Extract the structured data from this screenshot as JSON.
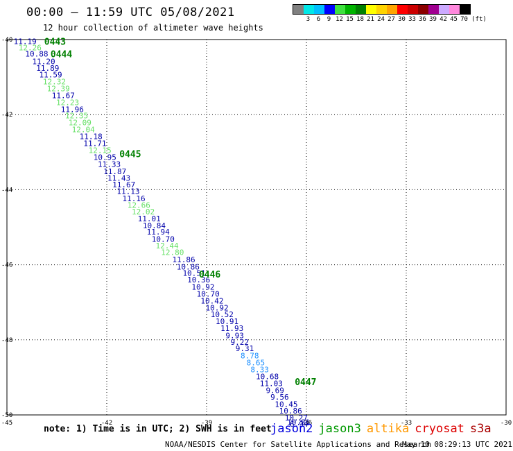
{
  "title": "00:00 – 11:59 UTC 05/08/2021",
  "subtitle": "12 hour collection of altimeter wave heights",
  "color_scale": {
    "unit": "(ft)",
    "bins": [
      {
        "label": "",
        "color": "#808080"
      },
      {
        "label": "3",
        "color": "#00e8e8"
      },
      {
        "label": "6",
        "color": "#00bfff"
      },
      {
        "label": "9",
        "color": "#0000ff"
      },
      {
        "label": "12",
        "color": "#3fe23f"
      },
      {
        "label": "15",
        "color": "#00b400"
      },
      {
        "label": "18",
        "color": "#008000"
      },
      {
        "label": "21",
        "color": "#ffff00"
      },
      {
        "label": "24",
        "color": "#ffd400"
      },
      {
        "label": "27",
        "color": "#ffa500"
      },
      {
        "label": "30",
        "color": "#ff0000"
      },
      {
        "label": "33",
        "color": "#cc0000"
      },
      {
        "label": "36",
        "color": "#8b0000"
      },
      {
        "label": "39",
        "color": "#a00090"
      },
      {
        "label": "42",
        "color": "#ccaaff"
      },
      {
        "label": "45",
        "color": "#ff88dd"
      },
      {
        "label": "70",
        "color": "#000000"
      }
    ]
  },
  "map": {
    "lon_range": [
      -45,
      -30
    ],
    "lat_range": [
      -50,
      -40
    ],
    "lon_ticks": [
      {
        "value": -45,
        "label": "-45"
      },
      {
        "value": -42,
        "label": "-42"
      },
      {
        "value": -39,
        "label": "-39"
      },
      {
        "value": -36,
        "label": "-36"
      },
      {
        "value": -33,
        "label": "-33"
      },
      {
        "value": -30,
        "label": "-30"
      }
    ],
    "lat_ticks": [
      {
        "value": -40,
        "label": "-40"
      },
      {
        "value": -42,
        "label": "-42"
      },
      {
        "value": -44,
        "label": "-44"
      },
      {
        "value": -46,
        "label": "-46"
      },
      {
        "value": -48,
        "label": "-48"
      },
      {
        "value": -50,
        "label": "-50"
      }
    ],
    "time_labels": [
      {
        "text": "0443",
        "lon": -43.88,
        "lat": -40.05
      },
      {
        "text": "0444",
        "lon": -43.69,
        "lat": -40.38
      },
      {
        "text": "0445",
        "lon": -41.62,
        "lat": -43.04
      },
      {
        "text": "0446",
        "lon": -39.23,
        "lat": -46.25
      },
      {
        "text": "0447",
        "lon": -36.35,
        "lat": -49.11
      }
    ],
    "points": [
      {
        "lon": -44.8,
        "lat": -40.05,
        "value": "11.19",
        "color": "#0000aa"
      },
      {
        "lon": -44.65,
        "lat": -40.21,
        "value": "12.26",
        "color": "#66e066"
      },
      {
        "lon": -44.45,
        "lat": -40.38,
        "value": "10.88",
        "color": "#0000aa"
      },
      {
        "lon": -44.24,
        "lat": -40.58,
        "value": "11.20",
        "color": "#0000aa"
      },
      {
        "lon": -44.12,
        "lat": -40.76,
        "value": "11.89",
        "color": "#0000aa"
      },
      {
        "lon": -44.03,
        "lat": -40.93,
        "value": "11.59",
        "color": "#0000aa"
      },
      {
        "lon": -43.92,
        "lat": -41.12,
        "value": "12.32",
        "color": "#66e066"
      },
      {
        "lon": -43.8,
        "lat": -41.3,
        "value": "12.39",
        "color": "#66e066"
      },
      {
        "lon": -43.65,
        "lat": -41.49,
        "value": "11.67",
        "color": "#0000aa"
      },
      {
        "lon": -43.52,
        "lat": -41.67,
        "value": "12.23",
        "color": "#66e066"
      },
      {
        "lon": -43.38,
        "lat": -41.86,
        "value": "11.96",
        "color": "#0000aa"
      },
      {
        "lon": -43.25,
        "lat": -42.02,
        "value": "12.35",
        "color": "#66e066"
      },
      {
        "lon": -43.15,
        "lat": -42.21,
        "value": "12.09",
        "color": "#66e066"
      },
      {
        "lon": -43.05,
        "lat": -42.39,
        "value": "12.04",
        "color": "#66e066"
      },
      {
        "lon": -42.82,
        "lat": -42.58,
        "value": "11.18",
        "color": "#0000aa"
      },
      {
        "lon": -42.7,
        "lat": -42.76,
        "value": "11.71",
        "color": "#0000aa"
      },
      {
        "lon": -42.55,
        "lat": -42.95,
        "value": "12.15",
        "color": "#66e066"
      },
      {
        "lon": -42.4,
        "lat": -43.13,
        "value": "10.95",
        "color": "#0000aa"
      },
      {
        "lon": -42.27,
        "lat": -43.32,
        "value": "11.33",
        "color": "#0000aa"
      },
      {
        "lon": -42.1,
        "lat": -43.51,
        "value": "11.87",
        "color": "#0000aa"
      },
      {
        "lon": -41.98,
        "lat": -43.69,
        "value": "11.43",
        "color": "#0000aa"
      },
      {
        "lon": -41.83,
        "lat": -43.86,
        "value": "11.67",
        "color": "#0000aa"
      },
      {
        "lon": -41.7,
        "lat": -44.04,
        "value": "11.13",
        "color": "#0000aa"
      },
      {
        "lon": -41.53,
        "lat": -44.23,
        "value": "11.16",
        "color": "#0000aa"
      },
      {
        "lon": -41.38,
        "lat": -44.41,
        "value": "12.66",
        "color": "#66e066"
      },
      {
        "lon": -41.25,
        "lat": -44.58,
        "value": "12.02",
        "color": "#66e066"
      },
      {
        "lon": -41.07,
        "lat": -44.77,
        "value": "11.01",
        "color": "#0000aa"
      },
      {
        "lon": -40.92,
        "lat": -44.95,
        "value": "10.84",
        "color": "#0000aa"
      },
      {
        "lon": -40.8,
        "lat": -45.12,
        "value": "11.94",
        "color": "#0000aa"
      },
      {
        "lon": -40.65,
        "lat": -45.31,
        "value": "10.70",
        "color": "#0000aa"
      },
      {
        "lon": -40.53,
        "lat": -45.49,
        "value": "12.44",
        "color": "#66e066"
      },
      {
        "lon": -40.37,
        "lat": -45.67,
        "value": "12.80",
        "color": "#66e066"
      },
      {
        "lon": -40.03,
        "lat": -45.86,
        "value": "11.86",
        "color": "#0000aa"
      },
      {
        "lon": -39.9,
        "lat": -46.05,
        "value": "10.86",
        "color": "#0000aa"
      },
      {
        "lon": -39.72,
        "lat": -46.22,
        "value": "10.51",
        "color": "#0000aa"
      },
      {
        "lon": -39.58,
        "lat": -46.4,
        "value": "10.36",
        "color": "#0000aa"
      },
      {
        "lon": -39.45,
        "lat": -46.59,
        "value": "10.92",
        "color": "#0000aa"
      },
      {
        "lon": -39.3,
        "lat": -46.77,
        "value": "10.70",
        "color": "#0000aa"
      },
      {
        "lon": -39.18,
        "lat": -46.96,
        "value": "10.42",
        "color": "#0000aa"
      },
      {
        "lon": -39.03,
        "lat": -47.14,
        "value": "10.92",
        "color": "#0000aa"
      },
      {
        "lon": -38.88,
        "lat": -47.32,
        "value": "10.52",
        "color": "#0000aa"
      },
      {
        "lon": -38.73,
        "lat": -47.5,
        "value": "10.91",
        "color": "#0000aa"
      },
      {
        "lon": -38.58,
        "lat": -47.69,
        "value": "11.93",
        "color": "#0000aa"
      },
      {
        "lon": -38.43,
        "lat": -47.88,
        "value": "9.93",
        "color": "#0000aa"
      },
      {
        "lon": -38.28,
        "lat": -48.06,
        "value": "9.22",
        "color": "#0000aa"
      },
      {
        "lon": -38.13,
        "lat": -48.23,
        "value": "9.31",
        "color": "#0000aa"
      },
      {
        "lon": -37.98,
        "lat": -48.42,
        "value": "8.78",
        "color": "#1e90ff"
      },
      {
        "lon": -37.8,
        "lat": -48.6,
        "value": "8.65",
        "color": "#1e90ff"
      },
      {
        "lon": -37.68,
        "lat": -48.79,
        "value": "8.33",
        "color": "#1e90ff"
      },
      {
        "lon": -37.52,
        "lat": -48.97,
        "value": "10.68",
        "color": "#0000aa"
      },
      {
        "lon": -37.4,
        "lat": -49.16,
        "value": "11.03",
        "color": "#0000aa"
      },
      {
        "lon": -37.22,
        "lat": -49.34,
        "value": "9.69",
        "color": "#0000aa"
      },
      {
        "lon": -37.08,
        "lat": -49.52,
        "value": "9.56",
        "color": "#0000aa"
      },
      {
        "lon": -36.95,
        "lat": -49.71,
        "value": "10.45",
        "color": "#0000aa"
      },
      {
        "lon": -36.82,
        "lat": -49.89,
        "value": "10.86",
        "color": "#0000aa"
      },
      {
        "lon": -36.65,
        "lat": -50.07,
        "value": "10.27",
        "color": "#0000aa"
      },
      {
        "lon": -36.58,
        "lat": -50.19,
        "value": "10.81",
        "color": "#0000aa"
      },
      {
        "lon": -36.5,
        "lat": -50.24,
        "value": "6.94",
        "color": "#0000aa"
      }
    ]
  },
  "note": "note: 1) Time is in UTC; 2) SWH is in feet",
  "satellites": [
    {
      "name": "jason2",
      "color": "#0000dd"
    },
    {
      "name": "jason3",
      "color": "#009900"
    },
    {
      "name": "altika",
      "color": "#ff9900"
    },
    {
      "name": "cryosat",
      "color": "#dd0000"
    },
    {
      "name": "s3a",
      "color": "#aa0000"
    }
  ],
  "credit": "NOAA/NESDIS Center for Satellite Applications and Research",
  "credit_date": "May 10 08:29:13 UTC 2021"
}
